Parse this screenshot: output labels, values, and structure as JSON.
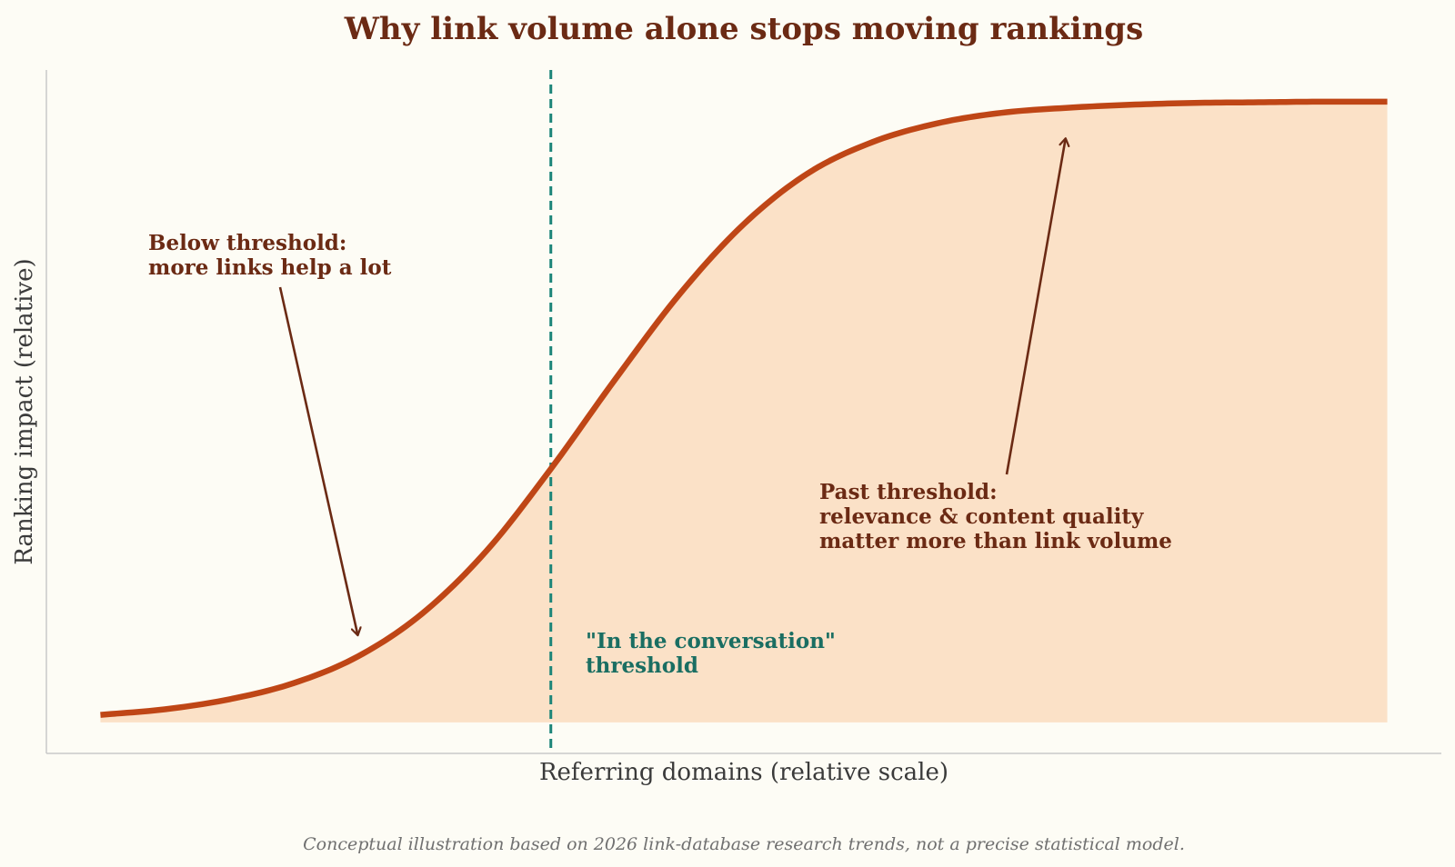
{
  "chart_data": {
    "type": "area",
    "title": "Why link volume alone stops moving rankings",
    "xlabel": "Referring domains (relative scale)",
    "ylabel": "Ranking impact (relative)",
    "xlim": [
      -0.42,
      10.42
    ],
    "ylim": [
      -0.05,
      1.05
    ],
    "grid": false,
    "x_ticks_visible": false,
    "y_ticks_visible": false,
    "series": [
      {
        "curve": "logistic",
        "x": [
          0,
          0.5,
          1,
          1.5,
          2,
          2.5,
          3,
          3.5,
          4,
          4.5,
          5,
          5.5,
          6,
          6.5,
          7,
          7.5,
          8,
          8.5,
          9,
          9.5,
          10
        ],
        "y": [
          0.012,
          0.021,
          0.037,
          0.063,
          0.106,
          0.175,
          0.276,
          0.408,
          0.552,
          0.689,
          0.802,
          0.884,
          0.934,
          0.964,
          0.981,
          0.989,
          0.994,
          0.997,
          0.998,
          0.999,
          0.999
        ],
        "color": "#bf4616",
        "fill_color": "#fbe1c7"
      }
    ],
    "threshold": {
      "x": 3.5,
      "color": "#1c8579",
      "label_line1": "\"In the conversation\"",
      "label_line2": "threshold"
    },
    "annotations": [
      {
        "lines": [
          "Below threshold:",
          "more links help a lot"
        ],
        "arrow_target": [
          2,
          0.14
        ],
        "color": "#6b2a14"
      },
      {
        "lines": [
          "Past threshold:",
          "relevance & content quality",
          "matter more than link volume"
        ],
        "arrow_target": [
          7.5,
          0.94
        ],
        "color": "#6b2a14"
      }
    ],
    "footnote": "Conceptual illustration based on 2026 link-database research trends, not a precise statistical model."
  }
}
